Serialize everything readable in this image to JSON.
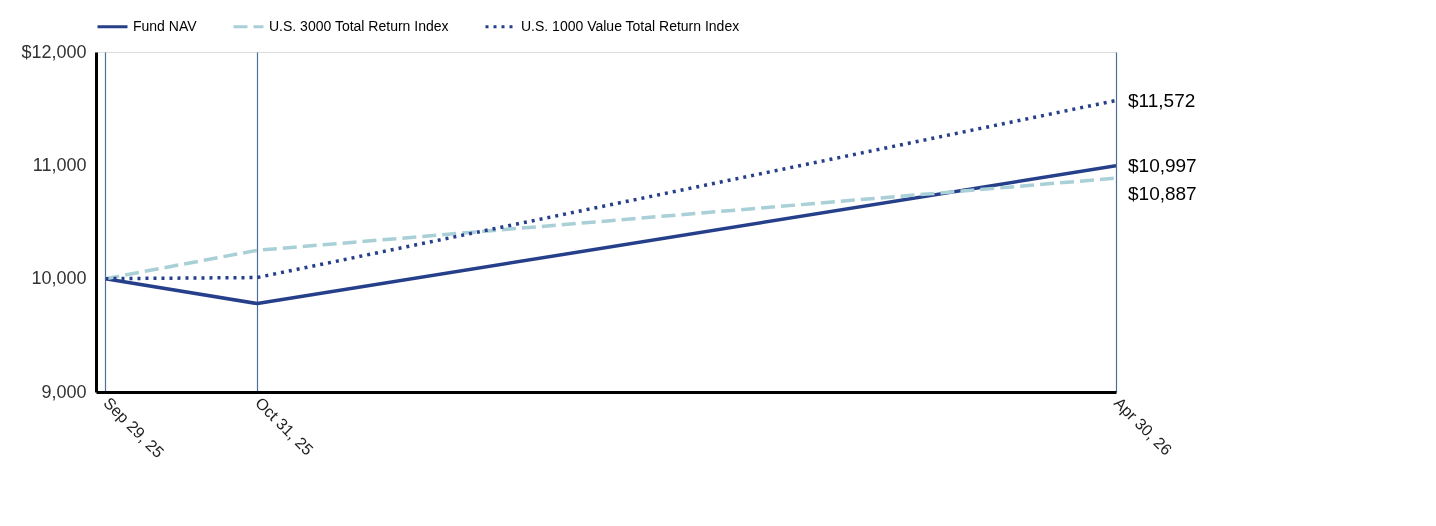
{
  "chart_data": {
    "type": "line",
    "x": [
      "2025-09-29",
      "2025-10-31",
      "2026-04-30"
    ],
    "series": [
      {
        "name": "Fund NAV",
        "color": "#263f8a",
        "line_style": "solid",
        "values": [
          10000,
          9780,
          10997
        ],
        "value_labels": [
          null,
          null,
          "$10,997"
        ]
      },
      {
        "name": "U.S. 3000 Total Return Index",
        "color": "#a8d0d6",
        "line_style": "dashed",
        "values": [
          10000,
          10250,
          10887
        ],
        "value_labels": [
          null,
          null,
          "$10,887"
        ]
      },
      {
        "name": "U.S. 1000 Value Total Return Index",
        "color": "#263f8a",
        "line_style": "dotted",
        "values": [
          10000,
          10010,
          11572
        ],
        "value_labels": [
          null,
          null,
          "$11,572"
        ]
      }
    ],
    "xlim": [
      "2025-09-27",
      "2026-04-30"
    ],
    "xticks": [
      {
        "value": "2025-09-29",
        "label": "Sep 29, 25"
      },
      {
        "value": "2025-10-31",
        "label": "Oct 31, 25"
      },
      {
        "value": "2026-04-30",
        "label": "Apr 30, 26"
      }
    ],
    "ylim": [
      9000,
      12000
    ],
    "yticks": [
      {
        "value": 9000,
        "label": "9,000"
      },
      {
        "value": 10000,
        "label": "10,000"
      },
      {
        "value": 11000,
        "label": "11,000"
      },
      {
        "value": 12000,
        "label": "$12,000"
      }
    ],
    "grid": "x",
    "legend": "top",
    "marker": "none"
  }
}
